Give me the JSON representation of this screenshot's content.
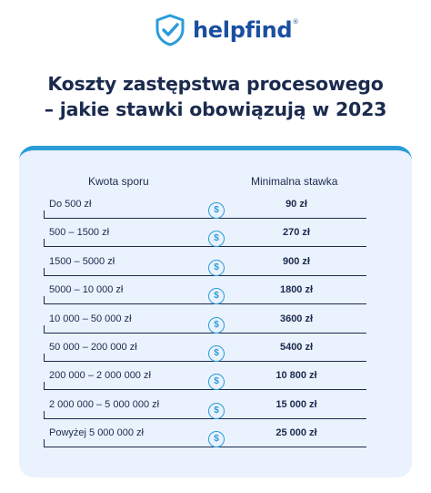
{
  "logo": {
    "text": "helpfind",
    "reg": "®",
    "icon": "shield-check-icon",
    "color": "#1a4fa0",
    "accent": "#2a9dd8"
  },
  "title": {
    "line1": "Koszty zastępstwa procesowego",
    "line2": "– jakie stawki obowiązują w 2023"
  },
  "table": {
    "col_amount": "Kwota sporu",
    "col_rate": "Minimalna stawka",
    "currency_symbol": "$",
    "rows": [
      {
        "range": "Do 500 zł",
        "rate": "90 zł"
      },
      {
        "range": "500 – 1500 zł",
        "rate": "270 zł"
      },
      {
        "range": "1500 – 5000 zł",
        "rate": "900 zł"
      },
      {
        "range": "5000 – 10 000 zł",
        "rate": "1800 zł"
      },
      {
        "range": "10 000 – 50 000 zł",
        "rate": "3600 zł"
      },
      {
        "range": "50 000 – 200 000 zł",
        "rate": "5400 zł"
      },
      {
        "range": "200 000 – 2 000 000 zł",
        "rate": "10 800 zł"
      },
      {
        "range": "2 000 000 – 5 000 000 zł",
        "rate": "15 000 zł"
      },
      {
        "range": "Powyżej 5 000 000 zł",
        "rate": "25 000 zł"
      }
    ]
  }
}
